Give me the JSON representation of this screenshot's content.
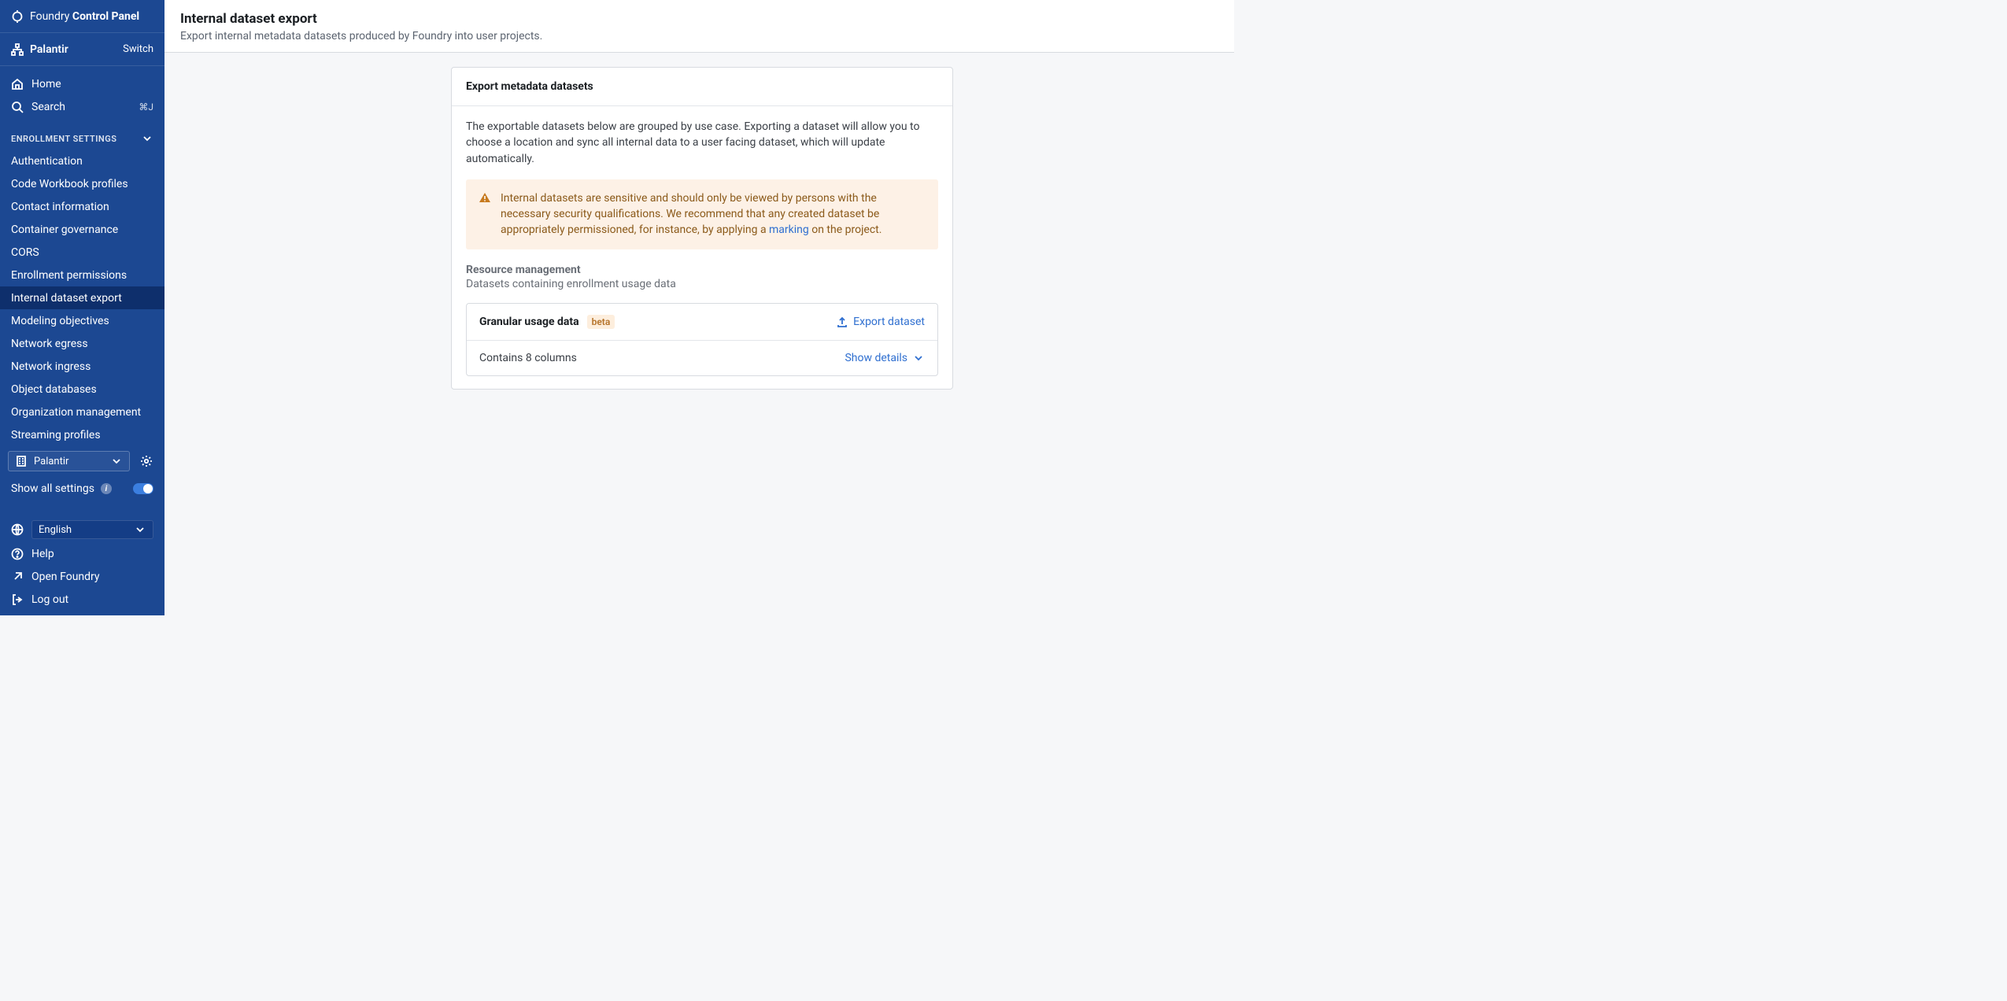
{
  "brand": {
    "light": "Foundry",
    "bold": "Control Panel"
  },
  "tenant": {
    "name": "Palantir",
    "switch": "Switch"
  },
  "nav_top": {
    "home": "Home",
    "search": "Search",
    "search_kbd": "⌘J"
  },
  "section": {
    "title": "ENROLLMENT SETTINGS",
    "items": [
      "Authentication",
      "Code Workbook profiles",
      "Contact information",
      "Container governance",
      "CORS",
      "Enrollment permissions",
      "Internal dataset export",
      "Modeling objectives",
      "Network egress",
      "Network ingress",
      "Object databases",
      "Organization management",
      "Streaming profiles"
    ],
    "active_index": 6
  },
  "selector": {
    "label": "Palantir"
  },
  "show_all": {
    "label": "Show all settings",
    "on": true
  },
  "language": {
    "label": "English"
  },
  "footer": {
    "help": "Help",
    "open": "Open Foundry",
    "logout": "Log out"
  },
  "page": {
    "title": "Internal dataset export",
    "subtitle": "Export internal metadata datasets produced by Foundry into user projects."
  },
  "card": {
    "title": "Export metadata datasets",
    "intro": "The exportable datasets below are grouped by use case. Exporting a dataset will allow you to choose a location and sync all internal data to a user facing dataset, which will update automatically.",
    "callout_before": "Internal datasets are sensitive and should only be viewed by persons with the necessary security qualifications. We recommend that any created dataset be appropriately permissioned, for instance, by applying a ",
    "callout_link": "marking",
    "callout_after": " on the project.",
    "group": {
      "title": "Resource management",
      "subtitle": "Datasets containing enrollment usage data"
    },
    "dataset": {
      "name": "Granular usage data",
      "badge": "beta",
      "export": "Export dataset",
      "columns": "Contains 8 columns",
      "details": "Show details"
    }
  },
  "colors": {
    "sidebar_bg": "#1c4892",
    "sidebar_active": "#0e2f6c",
    "link": "#2f6fd0",
    "callout_bg": "#fdf1e6",
    "callout_text": "#8b5a1a",
    "badge_bg": "#fdeedd",
    "badge_text": "#b5732a",
    "border": "#d8dbe0",
    "page_bg": "#f6f7f9"
  }
}
